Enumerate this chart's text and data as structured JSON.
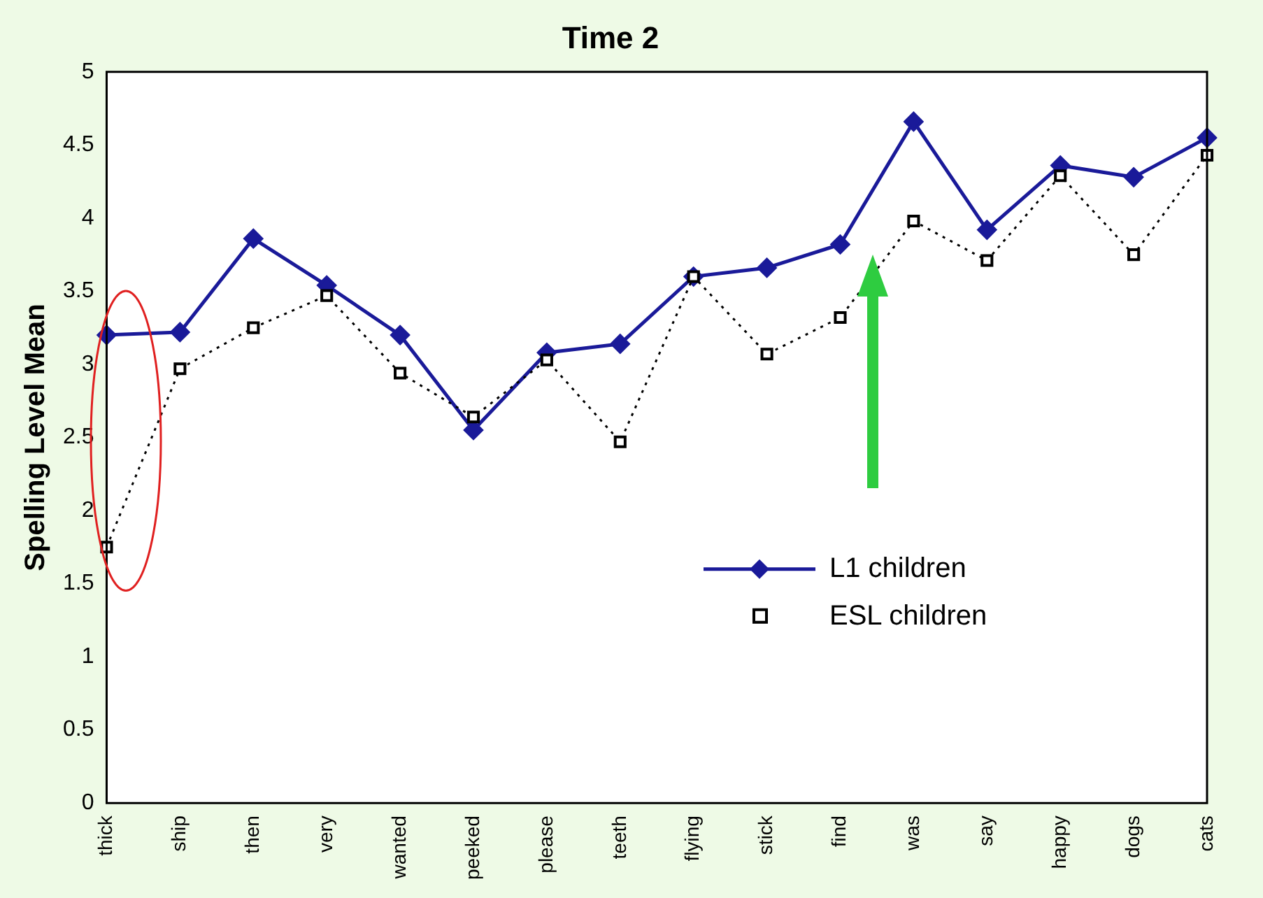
{
  "chart_data": {
    "type": "line",
    "title": "Time 2",
    "ylabel": "Spelling Level Mean",
    "categories": [
      "thick",
      "ship",
      "then",
      "very",
      "wanted",
      "peeked",
      "please",
      "teeth",
      "flying",
      "stick",
      "find",
      "was",
      "say",
      "happy",
      "dogs",
      "cats"
    ],
    "series": [
      {
        "name": "L1 children",
        "color": "#1a1a99",
        "marker": "diamond",
        "line_style": "solid",
        "values": [
          3.2,
          3.22,
          3.86,
          3.54,
          3.2,
          2.55,
          3.08,
          3.14,
          3.6,
          3.66,
          3.82,
          4.66,
          3.92,
          4.36,
          4.28,
          4.55
        ]
      },
      {
        "name": "ESL children",
        "color": "#000000",
        "marker": "square",
        "line_style": "dotted",
        "values": [
          1.75,
          2.97,
          3.25,
          3.47,
          2.94,
          2.64,
          3.03,
          2.47,
          3.6,
          3.07,
          3.32,
          3.98,
          3.71,
          4.29,
          3.75,
          4.43
        ]
      }
    ],
    "ylim": [
      0,
      5
    ],
    "yticks": [
      0,
      0.5,
      1,
      1.5,
      2,
      2.5,
      3,
      3.5,
      4,
      4.5,
      5
    ],
    "grid": false,
    "legend": "right"
  }
}
